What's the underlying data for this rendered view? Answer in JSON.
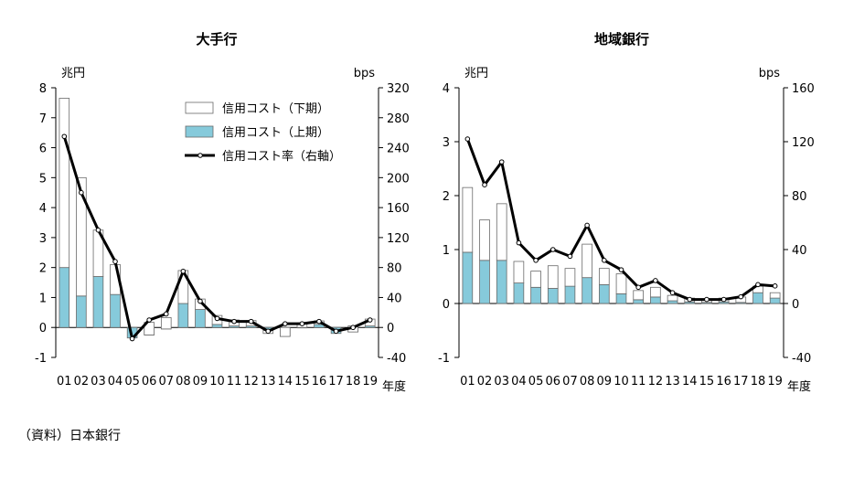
{
  "source": "（資料）日本銀行",
  "colors": {
    "upper": "#86cadb",
    "lower": "#ffffff",
    "bar_stroke": "#6a6a6a",
    "line": "#000000",
    "axis": "#000000"
  },
  "chart_data": [
    {
      "type": "bar",
      "title": "大手行",
      "left_unit": "兆円",
      "right_unit": "bps",
      "x_unit": "年度",
      "categories": [
        "01",
        "02",
        "03",
        "04",
        "05",
        "06",
        "07",
        "08",
        "09",
        "10",
        "11",
        "12",
        "13",
        "14",
        "15",
        "16",
        "17",
        "18",
        "19"
      ],
      "left_ylim": [
        -1,
        8
      ],
      "left_ticks": [
        "-1",
        "0",
        "1",
        "2",
        "3",
        "4",
        "5",
        "6",
        "7",
        "8"
      ],
      "right_ylim": [
        -40,
        320
      ],
      "right_ticks": [
        "-40",
        "0",
        "40",
        "80",
        "120",
        "160",
        "200",
        "240",
        "280",
        "320"
      ],
      "series": [
        {
          "name": "信用コスト（上期）",
          "kind": "bar_lower",
          "values": [
            2.0,
            1.05,
            1.7,
            1.1,
            -0.35,
            -0.25,
            -0.05,
            0.8,
            0.6,
            0.1,
            0.05,
            0.05,
            -0.1,
            -0.3,
            0.0,
            0.1,
            -0.2,
            -0.15,
            0.05
          ]
        },
        {
          "name": "信用コスト（下期）",
          "kind": "bar_upper",
          "values": [
            5.65,
            3.95,
            1.55,
            1.0,
            0.0,
            0.42,
            0.38,
            1.1,
            0.35,
            0.3,
            0.2,
            0.18,
            -0.1,
            0.3,
            0.15,
            0.12,
            0.0,
            0.2,
            0.23
          ]
        },
        {
          "name": "信用コスト率（右軸）",
          "kind": "line",
          "axis": "right",
          "values": [
            255,
            180,
            130,
            88,
            -15,
            10,
            18,
            75,
            35,
            12,
            8,
            8,
            -5,
            5,
            5,
            8,
            -5,
            0,
            10
          ]
        }
      ]
    },
    {
      "type": "bar",
      "title": "地域銀行",
      "left_unit": "兆円",
      "right_unit": "bps",
      "x_unit": "年度",
      "categories": [
        "01",
        "02",
        "03",
        "04",
        "05",
        "06",
        "07",
        "08",
        "09",
        "10",
        "11",
        "12",
        "13",
        "14",
        "15",
        "16",
        "17",
        "18",
        "19"
      ],
      "left_ylim": [
        -1,
        4
      ],
      "left_ticks": [
        "-1",
        "0",
        "1",
        "2",
        "3",
        "4"
      ],
      "right_ylim": [
        -40,
        160
      ],
      "right_ticks": [
        "-40",
        "0",
        "40",
        "80",
        "120",
        "160"
      ],
      "series": [
        {
          "name": "信用コスト（上期）",
          "kind": "bar_lower",
          "values": [
            0.95,
            0.8,
            0.8,
            0.38,
            0.3,
            0.28,
            0.32,
            0.48,
            0.35,
            0.18,
            0.07,
            0.12,
            0.05,
            0.03,
            0.02,
            0.03,
            0.02,
            0.2,
            0.1
          ]
        },
        {
          "name": "信用コスト（下期）",
          "kind": "bar_upper",
          "values": [
            1.2,
            0.75,
            1.05,
            0.4,
            0.3,
            0.42,
            0.33,
            0.62,
            0.3,
            0.37,
            0.17,
            0.18,
            0.1,
            0.07,
            0.04,
            0.07,
            0.1,
            0.12,
            0.1
          ]
        },
        {
          "name": "信用コスト率（右軸）",
          "kind": "line",
          "axis": "right",
          "values": [
            122,
            88,
            105,
            45,
            32,
            40,
            35,
            58,
            32,
            25,
            12,
            17,
            8,
            3,
            3,
            3,
            5,
            14,
            13
          ]
        }
      ]
    }
  ]
}
